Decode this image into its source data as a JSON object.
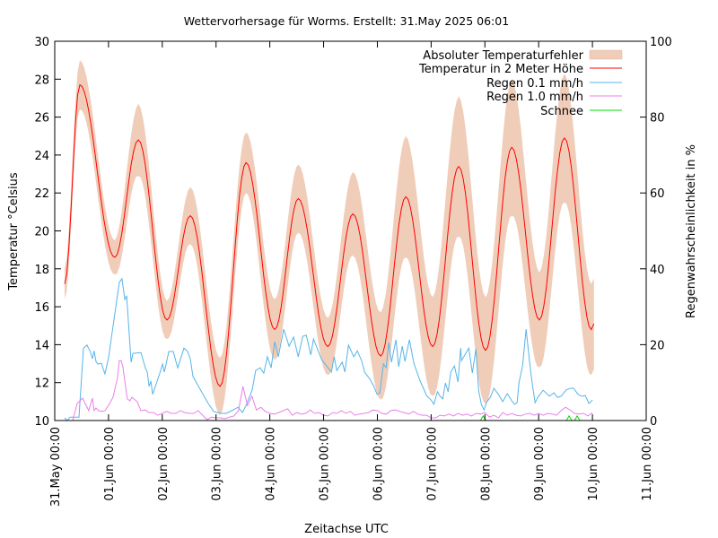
{
  "chart_data": {
    "type": "line",
    "title": "Wettervorhersage für Worms. Erstellt: 31.May 2025 06:01",
    "xlabel": "Zeitachse UTC",
    "ylabel": "Temperatur °Celsius",
    "y2label": "Regenwahrscheinlichkeit in %",
    "xlim_hours": [
      0,
      264
    ],
    "ylim": [
      10,
      30
    ],
    "y2lim": [
      0,
      100
    ],
    "yticks": [
      "10",
      "12",
      "14",
      "16",
      "18",
      "20",
      "22",
      "24",
      "26",
      "28",
      "30"
    ],
    "y2ticks": [
      "0",
      "20",
      "40",
      "60",
      "80",
      "100"
    ],
    "xticks": [
      "31.May 00:00",
      "01.Jun 00:00",
      "02.Jun 00:00",
      "03.Jun 00:00",
      "04.Jun 00:00",
      "05.Jun 00:00",
      "06.Jun 00:00",
      "07.Jun 00:00",
      "08.Jun 00:00",
      "09.Jun 00:00",
      "10.Jun 00:00",
      "11.Jun 00:00"
    ],
    "grid": false,
    "legend_position": "top-right",
    "legend": [
      {
        "label": "Absoluter Temperaturfehler",
        "kind": "band",
        "color": "#f0cdb9"
      },
      {
        "label": "Temperatur in 2 Meter Höhe",
        "kind": "line",
        "color": "#ff0000"
      },
      {
        "label": "Regen 0.1 mm/h",
        "kind": "line",
        "color": "#56b4e9"
      },
      {
        "label": "Regen 1.0 mm/h",
        "kind": "line",
        "color": "#e97fe9"
      },
      {
        "label": "Schnee",
        "kind": "line",
        "color": "#00dd00"
      }
    ],
    "series": [
      {
        "name": "Temperatur in 2 Meter Höhe",
        "axis": "left",
        "x_hours": [
          4.4,
          11.2,
          26.8,
          37.3,
          50.1,
          60.5,
          73.8,
          85.4,
          98.2,
          108.7,
          121.9,
          133.1,
          145.5,
          156.7,
          168.7,
          180.3,
          192.3,
          204.0,
          216.3,
          227.5,
          239.5,
          240.7
        ],
        "values": [
          17.2,
          27.7,
          18.6,
          24.8,
          15.3,
          20.8,
          11.8,
          23.6,
          14.8,
          21.7,
          13.9,
          20.9,
          13.4,
          21.8,
          13.9,
          23.4,
          13.7,
          24.4,
          15.3,
          24.9,
          14.8,
          15.1
        ]
      },
      {
        "name": "Absoluter Temperaturfehler",
        "axis": "left",
        "x_hours": [
          4.4,
          11.2,
          26.8,
          37.3,
          50.1,
          60.5,
          73.8,
          85.4,
          98.2,
          108.7,
          121.9,
          133.1,
          145.5,
          156.7,
          168.7,
          180.3,
          192.3,
          204.0,
          216.3,
          227.5,
          239.5,
          240.7
        ],
        "error_plusminus": [
          0.8,
          1.3,
          0.9,
          1.9,
          1.0,
          1.5,
          1.5,
          1.6,
          1.6,
          1.8,
          1.5,
          2.2,
          2.3,
          3.2,
          2.6,
          3.7,
          2.8,
          3.6,
          2.5,
          3.4,
          2.4,
          2.4
        ]
      },
      {
        "name": "Regen 0.1 mm/h",
        "axis": "right",
        "x_hours": [
          4.4,
          5.6,
          6.8,
          10.8,
          12.8,
          14.4,
          16.0,
          16.8,
          17.6,
          18.4,
          19.2,
          20.8,
          22.4,
          24.0,
          28.8,
          30.0,
          31.3,
          32.1,
          34.1,
          34.9,
          38.5,
          40.5,
          41.3,
          42.1,
          42.9,
          43.7,
          46.9,
          48.1,
          48.9,
          50.9,
          52.9,
          54.9,
          57.7,
          59.3,
          60.5,
          61.7,
          68.5,
          70.9,
          73.8,
          76.6,
          79.0,
          81.8,
          83.8,
          85.4,
          88.1,
          89.7,
          91.7,
          93.3,
          94.9,
          96.6,
          98.2,
          99.8,
          102.2,
          104.6,
          106.6,
          108.7,
          110.7,
          112.3,
          114.3,
          115.5,
          119.1,
          123.5,
          124.7,
          125.9,
          128.3,
          129.5,
          131.1,
          133.5,
          135.1,
          137.1,
          138.3,
          140.7,
          142.3,
          143.9,
          145.1,
          146.7,
          147.9,
          149.1,
          150.3,
          152.3,
          153.5,
          155.1,
          156.3,
          158.3,
          160.3,
          163.1,
          165.1,
          165.9,
          168.0,
          169.2,
          170.8,
          172.0,
          173.2,
          174.4,
          175.6,
          176.8,
          178.4,
          180.0,
          181.2,
          181.6,
          184.8,
          186.4,
          188.0,
          189.2,
          190.4,
          191.6,
          192.8,
          194.4,
          196.0,
          198.0,
          200.0,
          202.0,
          204.0,
          205.2,
          206.4,
          207.2,
          208.8,
          210.4,
          212.0,
          213.2,
          214.4,
          215.6,
          218.0,
          220.8,
          222.8,
          224.4,
          226.0,
          228.4,
          230.4,
          231.6,
          233.6,
          235.2,
          236.8,
          238.4,
          240.0
        ],
        "values": [
          0.7,
          0.0,
          0.9,
          0.9,
          19.1,
          19.9,
          18.0,
          16.3,
          18.4,
          15.6,
          14.9,
          15.1,
          12.3,
          16.5,
          36.4,
          37.4,
          31.9,
          32.9,
          15.4,
          17.7,
          17.9,
          13.7,
          12.8,
          9.0,
          10.4,
          6.9,
          12.5,
          14.9,
          12.8,
          18.2,
          18.2,
          13.9,
          19.1,
          18.2,
          16.3,
          11.6,
          4.5,
          2.4,
          1.9,
          1.9,
          2.6,
          3.5,
          2.1,
          4.0,
          8.0,
          13.2,
          13.9,
          12.5,
          16.8,
          13.9,
          20.8,
          16.8,
          24.1,
          19.6,
          22.0,
          16.8,
          22.2,
          22.5,
          17.3,
          21.5,
          16.1,
          12.8,
          16.8,
          13.2,
          15.4,
          12.8,
          19.9,
          16.8,
          18.4,
          15.6,
          12.8,
          10.9,
          9.2,
          6.9,
          7.3,
          14.9,
          13.9,
          20.6,
          15.4,
          21.3,
          14.2,
          19.6,
          15.6,
          21.3,
          15.1,
          10.4,
          7.8,
          6.6,
          5.4,
          4.3,
          7.6,
          6.4,
          5.7,
          9.9,
          7.6,
          12.8,
          14.4,
          10.2,
          19.1,
          15.8,
          19.1,
          12.5,
          18.9,
          8.0,
          4.3,
          2.8,
          4.9,
          6.1,
          8.5,
          6.9,
          5.0,
          7.1,
          5.2,
          4.3,
          4.7,
          9.9,
          14.4,
          24.1,
          15.1,
          9.4,
          4.7,
          6.1,
          8.0,
          6.4,
          7.3,
          6.1,
          6.4,
          8.1,
          8.5,
          8.5,
          6.9,
          6.4,
          6.6,
          4.5,
          5.4,
          5.2
        ]
      },
      {
        "name": "Regen 1.0 mm/h",
        "axis": "right",
        "x_hours": [
          8.0,
          10.0,
          12.4,
          13.6,
          15.2,
          16.8,
          17.6,
          18.4,
          19.6,
          21.2,
          22.4,
          24.0,
          26.0,
          28.0,
          28.8,
          29.6,
          30.4,
          31.6,
          32.4,
          33.6,
          34.4,
          36.8,
          38.4,
          40.4,
          42.0,
          44.0,
          46.0,
          48.0,
          50.0,
          52.0,
          54.0,
          56.0,
          58.0,
          60.0,
          62.0,
          64.0,
          66.0,
          68.0,
          70.0,
          72.0,
          74.0,
          76.0,
          78.0,
          80.0,
          82.0,
          84.0,
          86.0,
          88.0,
          90.0,
          92.0,
          94.0,
          96.0,
          98.0,
          100.0,
          102.0,
          104.0,
          106.0,
          108.0,
          110.0,
          112.0,
          114.0,
          116.0,
          118.0,
          120.0,
          122.0,
          124.0,
          126.0,
          128.0,
          130.0,
          132.0,
          134.0,
          136.0,
          138.0,
          140.0,
          142.0,
          144.0,
          146.0,
          148.0,
          150.0,
          152.0,
          154.0,
          156.0,
          158.0,
          160.0,
          162.0,
          164.0,
          166.0,
          168.0,
          170.0,
          172.0,
          174.0,
          176.0,
          178.0,
          180.0,
          182.0,
          184.0,
          186.0,
          188.0,
          190.0,
          192.0,
          194.0,
          196.0,
          198.0,
          200.0,
          202.0,
          204.0,
          206.0,
          208.0,
          210.0,
          212.0,
          214.0,
          216.0,
          218.0,
          220.0,
          222.0,
          224.0,
          226.0,
          228.0,
          230.0,
          232.0,
          234.0,
          236.0,
          238.0,
          240.0
        ],
        "values": [
          0.0,
          4.5,
          5.9,
          4.5,
          2.6,
          5.9,
          2.6,
          3.3,
          2.6,
          2.4,
          2.6,
          4.0,
          6.1,
          11.3,
          15.8,
          15.8,
          14.2,
          9.0,
          5.7,
          5.2,
          6.1,
          5.0,
          2.6,
          2.8,
          2.1,
          2.1,
          1.4,
          1.9,
          2.4,
          1.9,
          1.9,
          2.6,
          2.1,
          1.9,
          1.9,
          2.6,
          1.4,
          0.2,
          0.9,
          0.7,
          0.7,
          0.5,
          0.9,
          1.2,
          2.6,
          9.0,
          4.0,
          6.4,
          2.8,
          3.5,
          2.4,
          1.9,
          1.7,
          2.1,
          2.6,
          3.1,
          1.4,
          2.1,
          1.7,
          1.9,
          2.8,
          1.9,
          2.1,
          1.4,
          1.2,
          2.1,
          1.9,
          2.6,
          1.9,
          2.4,
          1.4,
          1.7,
          1.9,
          2.1,
          2.8,
          2.6,
          1.9,
          1.7,
          2.6,
          2.8,
          2.4,
          2.1,
          1.7,
          2.4,
          1.7,
          1.4,
          1.4,
          0.7,
          0.7,
          1.4,
          1.2,
          1.7,
          1.2,
          1.9,
          1.4,
          1.7,
          1.2,
          1.9,
          1.7,
          2.1,
          0.9,
          1.4,
          0.7,
          2.1,
          1.4,
          1.9,
          1.4,
          1.2,
          1.7,
          1.9,
          1.4,
          1.9,
          1.4,
          1.9,
          1.7,
          1.4,
          2.6,
          3.5,
          2.8,
          1.9,
          1.7,
          1.9,
          1.2,
          2.1,
          2.1,
          2.1
        ]
      },
      {
        "name": "Schnee",
        "axis": "right",
        "x_hours": [
          190.0,
          191.2,
          192.4,
          228.4,
          229.6,
          230.8,
          232.0,
          233.2,
          234.4
        ],
        "values": [
          0.0,
          1.2,
          0.0,
          0.0,
          1.2,
          0.0,
          0.0,
          1.2,
          0.0
        ]
      }
    ]
  }
}
